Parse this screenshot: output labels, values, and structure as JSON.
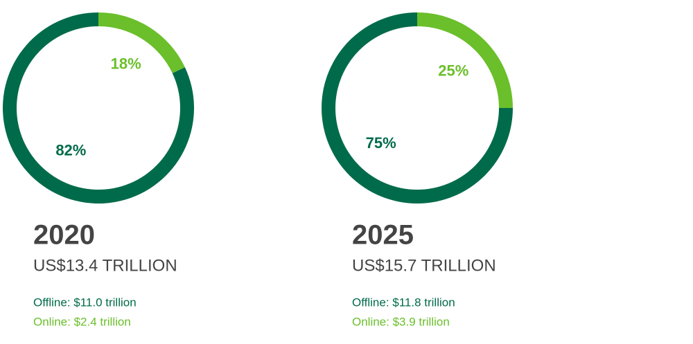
{
  "chart_data": [
    {
      "type": "donut",
      "title": "2020",
      "subtitle": "US$13.4 TRILLION",
      "categories": [
        "Offline: $11.0 trillion",
        "Online: $2.4 trillion"
      ],
      "values": [
        82,
        18
      ],
      "value_labels": [
        "82%",
        "18%"
      ],
      "colors": [
        "#006b4a",
        "#6abf2a"
      ]
    },
    {
      "type": "donut",
      "title": "2025",
      "subtitle": "US$15.7 TRILLION",
      "categories": [
        "Offline: $11.8 trillion",
        "Online: $3.9 trillion"
      ],
      "values": [
        75,
        25
      ],
      "value_labels": [
        "75%",
        "25%"
      ],
      "colors": [
        "#006b4a",
        "#6abf2a"
      ]
    }
  ]
}
